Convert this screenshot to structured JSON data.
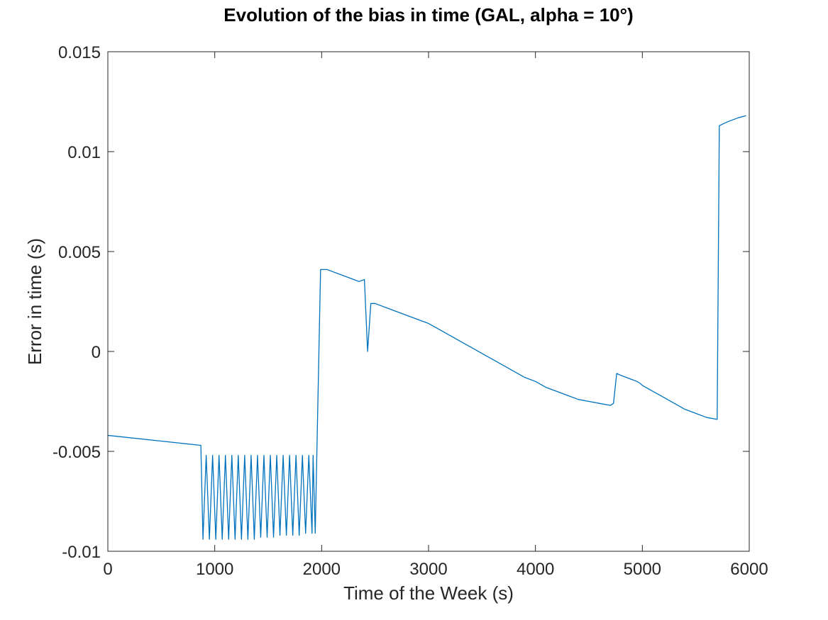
{
  "chart_data": {
    "type": "line",
    "title": "Evolution of the bias in time (GAL, alpha = 10°)",
    "xlabel": "Time of the Week (s)",
    "ylabel": "Error in time (s)",
    "xlim": [
      0,
      6000
    ],
    "ylim": [
      -0.01,
      0.015
    ],
    "xticks": [
      0,
      1000,
      2000,
      3000,
      4000,
      5000,
      6000
    ],
    "xtick_labels": [
      "0",
      "1000",
      "2000",
      "3000",
      "4000",
      "5000",
      "6000"
    ],
    "yticks": [
      -0.01,
      -0.005,
      0,
      0.005,
      0.01,
      0.015
    ],
    "ytick_labels": [
      "-0.01",
      "-0.005",
      "0",
      "0.005",
      "0.01",
      "0.015"
    ],
    "grid": false,
    "line_color": "#0072bd",
    "series": [
      {
        "x": [
          0,
          870,
          890,
          920,
          950,
          980,
          1010,
          1040,
          1070,
          1100,
          1130,
          1160,
          1190,
          1220,
          1250,
          1280,
          1310,
          1340,
          1370,
          1400,
          1430,
          1460,
          1490,
          1520,
          1550,
          1580,
          1610,
          1640,
          1670,
          1700,
          1730,
          1760,
          1790,
          1820,
          1850,
          1880,
          1910,
          1920,
          1940,
          1990,
          2050,
          2100,
          2150,
          2200,
          2250,
          2300,
          2350,
          2400,
          2430,
          2460,
          2500,
          2600,
          2700,
          2800,
          2900,
          3000,
          3100,
          3200,
          3300,
          3400,
          3500,
          3600,
          3700,
          3800,
          3900,
          4000,
          4100,
          4200,
          4300,
          4400,
          4500,
          4600,
          4700,
          4730,
          4760,
          4800,
          4850,
          4900,
          4950,
          4980,
          5000,
          5100,
          5200,
          5300,
          5400,
          5500,
          5600,
          5700,
          5720,
          5800,
          5900,
          5970
        ],
        "y": [
          -0.0042,
          -0.0047,
          -0.0094,
          -0.0052,
          -0.0094,
          -0.0052,
          -0.0094,
          -0.0052,
          -0.0094,
          -0.0052,
          -0.0094,
          -0.0052,
          -0.0094,
          -0.0052,
          -0.0094,
          -0.0052,
          -0.0094,
          -0.0052,
          -0.0094,
          -0.0052,
          -0.0093,
          -0.0052,
          -0.0093,
          -0.0052,
          -0.0093,
          -0.0052,
          -0.0092,
          -0.0052,
          -0.0092,
          -0.0052,
          -0.0092,
          -0.0052,
          -0.0092,
          -0.0052,
          -0.0091,
          -0.0052,
          -0.0091,
          -0.0052,
          -0.0091,
          0.0041,
          0.0041,
          0.004,
          0.0039,
          0.0038,
          0.0037,
          0.0036,
          0.0035,
          0.0036,
          0.0,
          0.0024,
          0.0024,
          0.0022,
          0.002,
          0.0018,
          0.0016,
          0.0014,
          0.0011,
          0.0008,
          0.0005,
          0.0002,
          -0.0001,
          -0.0004,
          -0.0007,
          -0.001,
          -0.0013,
          -0.0015,
          -0.0018,
          -0.002,
          -0.0022,
          -0.0024,
          -0.0025,
          -0.0026,
          -0.0027,
          -0.0026,
          -0.0011,
          -0.0012,
          -0.0013,
          -0.0014,
          -0.0015,
          -0.0016,
          -0.0017,
          -0.002,
          -0.0023,
          -0.0026,
          -0.0029,
          -0.0031,
          -0.0033,
          -0.0034,
          0.0113,
          0.0115,
          0.0117,
          0.0118
        ]
      }
    ]
  }
}
